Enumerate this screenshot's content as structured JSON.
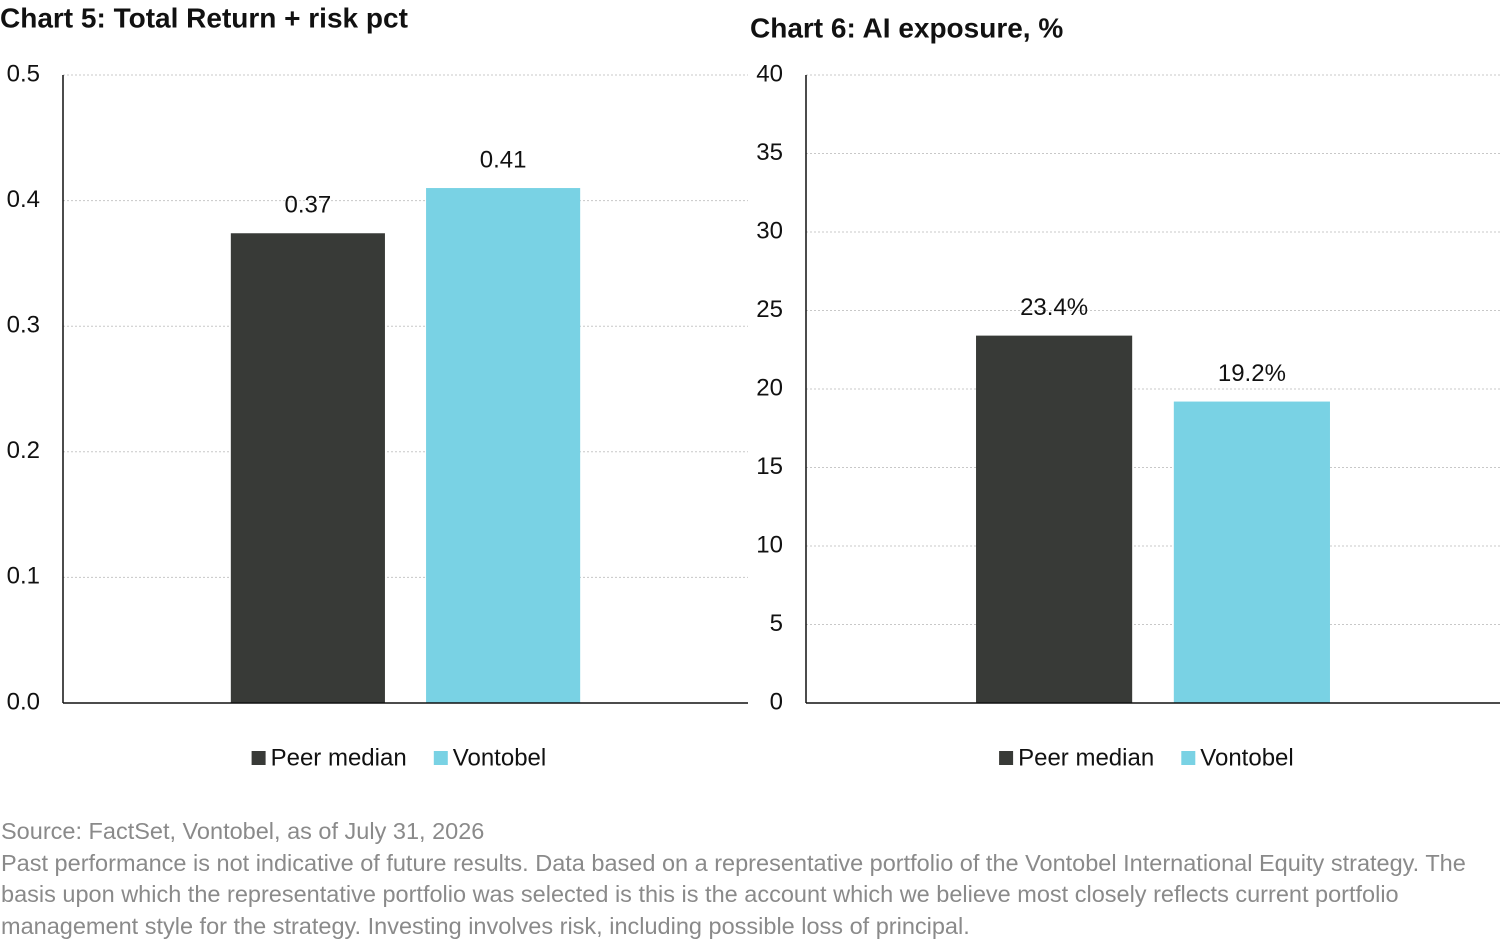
{
  "chart_data": [
    {
      "type": "bar",
      "title": "Chart 5: Total Return + risk pct",
      "series": [
        {
          "name": "Peer median",
          "color": "#383a37",
          "values": [
            0.374
          ],
          "value_labels": [
            "0.37"
          ]
        },
        {
          "name": "Vontobel",
          "color": "#79d2e4",
          "values": [
            0.41
          ],
          "value_labels": [
            "0.41"
          ]
        }
      ],
      "ylim": [
        0,
        0.5
      ],
      "yticks": [
        {
          "value": 0,
          "label": "0.0"
        },
        0.1,
        0.2,
        0.3,
        0.4,
        0.5
      ],
      "grid": true,
      "legend": "bottom"
    },
    {
      "type": "bar",
      "title": "Chart 6: AI exposure, %",
      "series": [
        {
          "name": "Peer median",
          "color": "#383a37",
          "values": [
            23.4
          ],
          "value_labels": [
            "23.4%"
          ]
        },
        {
          "name": "Vontobel",
          "color": "#79d2e4",
          "values": [
            19.2
          ],
          "value_labels": [
            "19.2%"
          ]
        }
      ],
      "ylim": [
        0,
        40
      ],
      "yticks": [
        0,
        5,
        10,
        15,
        20,
        25,
        30,
        35,
        40
      ],
      "grid": true,
      "legend": "bottom"
    }
  ],
  "footer": {
    "source": "Source: FactSet, Vontobel, as of July 31, 2026",
    "note": "Past performance is not indicative of future results. Data based on a representative portfolio of the Vontobel International Equity strategy. The basis upon which the representative portfolio was selected is this is the account which we believe most closely reflects current portfolio management style for the strategy. Investing involves risk, including possible loss of principal."
  }
}
